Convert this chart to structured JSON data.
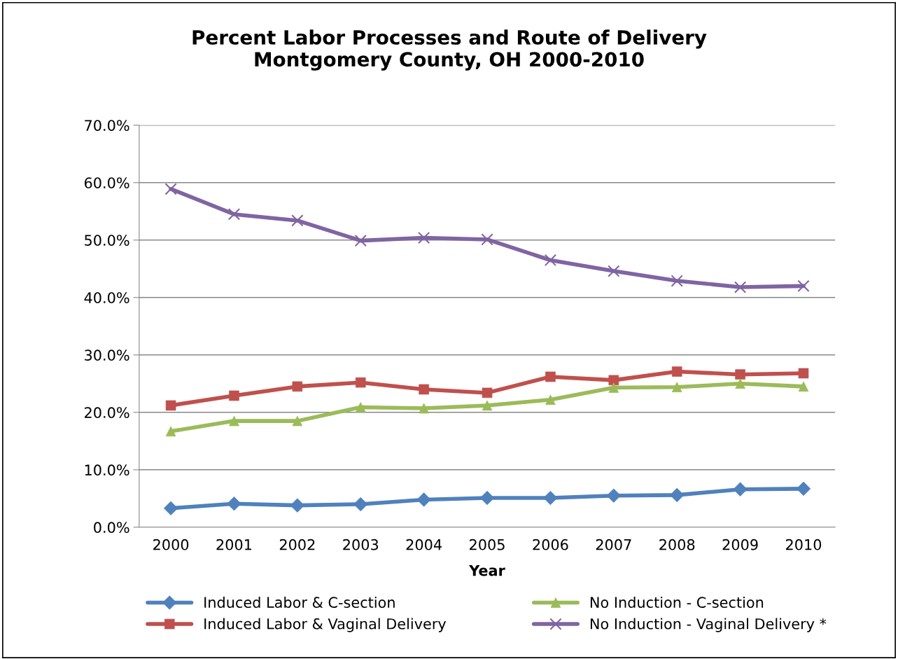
{
  "chart_data": {
    "type": "line",
    "title": "Percent Labor Processes and Route of Delivery\nMontgomery County, OH 2000-2010",
    "xlabel": "Year",
    "categories": [
      "2000",
      "2001",
      "2002",
      "2003",
      "2004",
      "2005",
      "2006",
      "2007",
      "2008",
      "2009",
      "2010"
    ],
    "series": [
      {
        "name": "Induced Labor & C-section",
        "color": "#4f81bd",
        "marker": "diamond",
        "values": [
          3.3,
          4.1,
          3.8,
          4.0,
          4.8,
          5.1,
          5.1,
          5.5,
          5.6,
          6.6,
          6.7
        ]
      },
      {
        "name": "Induced Labor & Vaginal Delivery",
        "color": "#c0504d",
        "marker": "square",
        "values": [
          21.2,
          22.9,
          24.5,
          25.2,
          24.0,
          23.4,
          26.2,
          25.6,
          27.1,
          26.6,
          26.8
        ]
      },
      {
        "name": "No Induction - C-section",
        "color": "#9bbb59",
        "marker": "triangle",
        "values": [
          16.7,
          18.5,
          18.5,
          20.9,
          20.7,
          21.2,
          22.2,
          24.3,
          24.4,
          25.0,
          24.5
        ]
      },
      {
        "name": "No Induction - Vaginal Delivery *",
        "color": "#8064a2",
        "marker": "cross",
        "values": [
          58.9,
          54.5,
          53.4,
          49.9,
          50.4,
          50.1,
          46.5,
          44.6,
          42.9,
          41.8,
          42.0
        ]
      }
    ],
    "ylim": [
      0,
      70
    ],
    "yticks": [
      {
        "value": 0,
        "label": "0.0%"
      },
      {
        "value": 10,
        "label": "10.0%"
      },
      {
        "value": 20,
        "label": "20.0%"
      },
      {
        "value": 30,
        "label": "30.0%"
      },
      {
        "value": 40,
        "label": "40.0%"
      },
      {
        "value": 50,
        "label": "50.0%"
      },
      {
        "value": 60,
        "label": "60.0%"
      },
      {
        "value": 70,
        "label": "70.0%"
      }
    ],
    "grid": "y",
    "legend": "bottom",
    "line_style": "solid"
  }
}
